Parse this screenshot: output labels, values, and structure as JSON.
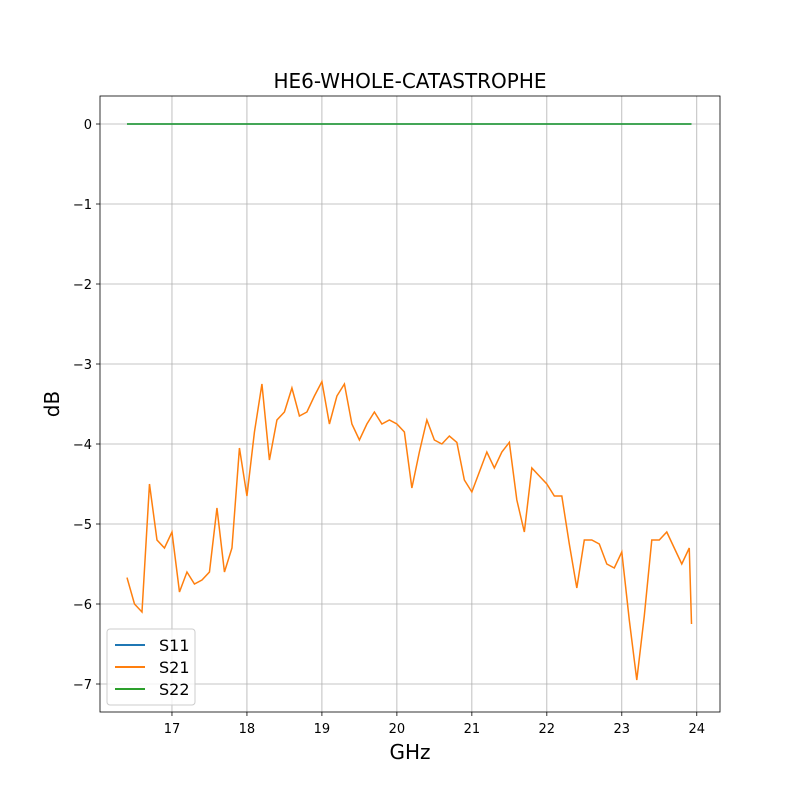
{
  "chart_data": {
    "type": "line",
    "title": "HE6-WHOLE-CATASTROPHE",
    "x_label": "GHz",
    "y_label": "dB",
    "x": [
      16.4,
      16.5,
      16.6,
      16.7,
      16.8,
      16.9,
      17.0,
      17.1,
      17.2,
      17.3,
      17.4,
      17.5,
      17.6,
      17.7,
      17.8,
      17.9,
      18.0,
      18.1,
      18.2,
      18.3,
      18.4,
      18.5,
      18.6,
      18.7,
      18.8,
      18.9,
      19.0,
      19.1,
      19.2,
      19.3,
      19.4,
      19.5,
      19.6,
      19.7,
      19.8,
      19.9,
      20.0,
      20.1,
      20.2,
      20.3,
      20.4,
      20.5,
      20.6,
      20.7,
      20.8,
      20.9,
      21.0,
      21.1,
      21.2,
      21.3,
      21.4,
      21.5,
      21.6,
      21.7,
      21.8,
      21.9,
      22.0,
      22.1,
      22.2,
      22.3,
      22.4,
      22.5,
      22.6,
      22.7,
      22.8,
      22.9,
      23.0,
      23.1,
      23.2,
      23.3,
      23.4,
      23.5,
      23.6,
      23.7,
      23.8,
      23.9,
      23.93
    ],
    "series": [
      {
        "name": "S11",
        "color": "#1f77b4",
        "values": [
          0,
          0,
          0,
          0,
          0,
          0,
          0,
          0,
          0,
          0,
          0,
          0,
          0,
          0,
          0,
          0,
          0,
          0,
          0,
          0,
          0,
          0,
          0,
          0,
          0,
          0,
          0,
          0,
          0,
          0,
          0,
          0,
          0,
          0,
          0,
          0,
          0,
          0,
          0,
          0,
          0,
          0,
          0,
          0,
          0,
          0,
          0,
          0,
          0,
          0,
          0,
          0,
          0,
          0,
          0,
          0,
          0,
          0,
          0,
          0,
          0,
          0,
          0,
          0,
          0,
          0,
          0,
          0,
          0,
          0,
          0,
          0,
          0,
          0,
          0,
          0,
          0
        ]
      },
      {
        "name": "S21",
        "color": "#ff7f0e",
        "values": [
          -5.67,
          -6.0,
          -6.1,
          -4.5,
          -5.2,
          -5.3,
          -5.1,
          -5.85,
          -5.6,
          -5.75,
          -5.7,
          -5.6,
          -4.8,
          -5.6,
          -5.3,
          -4.05,
          -4.65,
          -3.85,
          -3.25,
          -4.2,
          -3.7,
          -3.6,
          -3.3,
          -3.65,
          -3.6,
          -3.4,
          -3.22,
          -3.75,
          -3.4,
          -3.25,
          -3.75,
          -3.95,
          -3.75,
          -3.6,
          -3.75,
          -3.7,
          -3.75,
          -3.85,
          -4.55,
          -4.1,
          -3.7,
          -3.95,
          -4.0,
          -3.9,
          -3.98,
          -4.45,
          -4.6,
          -4.35,
          -4.1,
          -4.3,
          -4.1,
          -3.98,
          -4.7,
          -5.1,
          -4.3,
          -4.4,
          -4.5,
          -4.65,
          -4.65,
          -5.25,
          -5.8,
          -5.2,
          -5.2,
          -5.25,
          -5.5,
          -5.55,
          -5.35,
          -6.2,
          -6.95,
          -6.15,
          -5.2,
          -5.2,
          -5.1,
          -5.3,
          -5.5,
          -5.3,
          -6.25
        ]
      },
      {
        "name": "S22",
        "color": "#2ca02c",
        "values": [
          0,
          0,
          0,
          0,
          0,
          0,
          0,
          0,
          0,
          0,
          0,
          0,
          0,
          0,
          0,
          0,
          0,
          0,
          0,
          0,
          0,
          0,
          0,
          0,
          0,
          0,
          0,
          0,
          0,
          0,
          0,
          0,
          0,
          0,
          0,
          0,
          0,
          0,
          0,
          0,
          0,
          0,
          0,
          0,
          0,
          0,
          0,
          0,
          0,
          0,
          0,
          0,
          0,
          0,
          0,
          0,
          0,
          0,
          0,
          0,
          0,
          0,
          0,
          0,
          0,
          0,
          0,
          0,
          0,
          0,
          0,
          0,
          0,
          0,
          0,
          0,
          0
        ]
      }
    ],
    "xlim": [
      16.04,
      24.31
    ],
    "ylim": [
      -7.35,
      0.35
    ],
    "xticks": [
      17,
      18,
      19,
      20,
      21,
      22,
      23,
      24
    ],
    "yticks": [
      0,
      {
        "value": -1,
        "label": "−1"
      },
      {
        "value": -2,
        "label": "−2"
      },
      {
        "value": -3,
        "label": "−3"
      },
      {
        "value": -4,
        "label": "−4"
      },
      {
        "value": -5,
        "label": "−5"
      },
      {
        "value": -6,
        "label": "−6"
      },
      {
        "value": -7,
        "label": "−7"
      }
    ],
    "grid": true,
    "legend": "lower left"
  }
}
